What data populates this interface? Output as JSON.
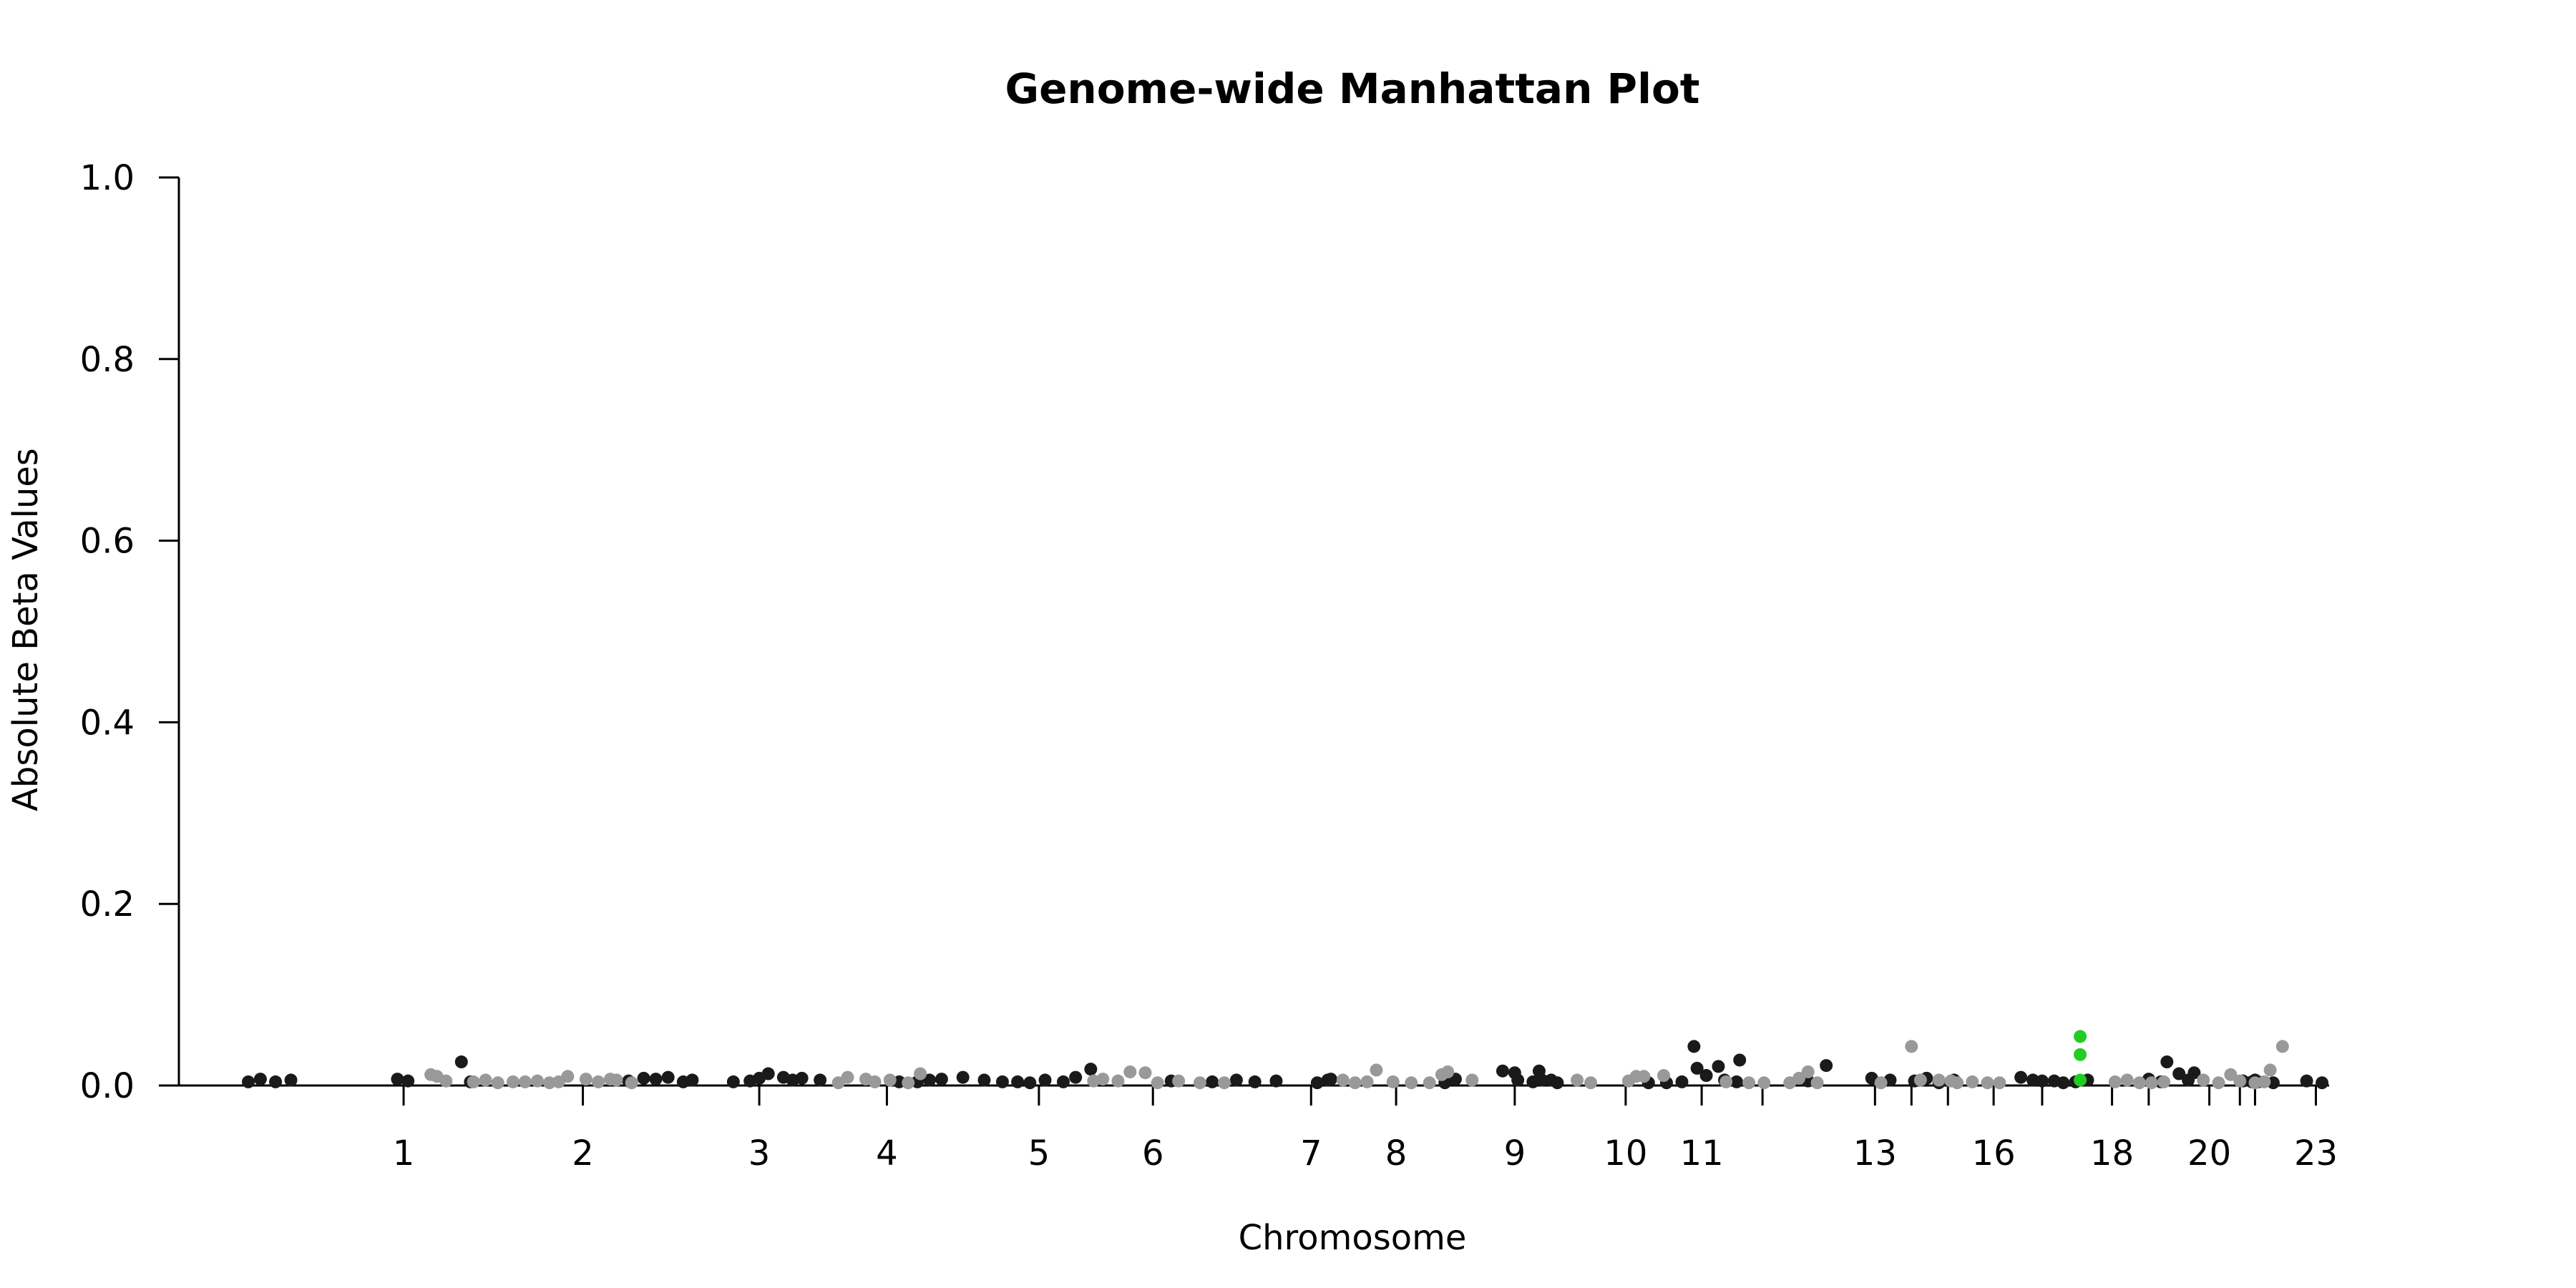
{
  "chart_data": {
    "type": "scatter",
    "title": "Genome-wide Manhattan Plot",
    "xlabel": "Chromosome",
    "ylabel": "Absolute Beta Values",
    "ylim": [
      0,
      1.0
    ],
    "y_ticks": [
      "0.0",
      "0.2",
      "0.4",
      "0.6",
      "0.8",
      "1.0"
    ],
    "grid": false,
    "legend": "none",
    "x_tick_labels": [
      "1",
      "2",
      "3",
      "4",
      "5",
      "6",
      "7",
      "8",
      "9",
      "10",
      "11",
      "13",
      "16",
      "18",
      "20",
      "23"
    ],
    "chromosome_tick_positions": [
      {
        "chr": "1",
        "pos": 0.0707,
        "label": true
      },
      {
        "chr": "2",
        "pos": 0.1523,
        "label": true
      },
      {
        "chr": "3",
        "pos": 0.2326,
        "label": true
      },
      {
        "chr": "4",
        "pos": 0.2907,
        "label": true
      },
      {
        "chr": "5",
        "pos": 0.3599,
        "label": true
      },
      {
        "chr": "6",
        "pos": 0.4118,
        "label": true
      },
      {
        "chr": "7",
        "pos": 0.4838,
        "label": true
      },
      {
        "chr": "8",
        "pos": 0.5225,
        "label": true
      },
      {
        "chr": "9",
        "pos": 0.5765,
        "label": true
      },
      {
        "chr": "10",
        "pos": 0.627,
        "label": true
      },
      {
        "chr": "11",
        "pos": 0.6616,
        "label": true
      },
      {
        "chr": "12",
        "pos": 0.6893,
        "label": false
      },
      {
        "chr": "13",
        "pos": 0.7405,
        "label": true
      },
      {
        "chr": "14",
        "pos": 0.7571,
        "label": false
      },
      {
        "chr": "15",
        "pos": 0.7737,
        "label": false
      },
      {
        "chr": "16",
        "pos": 0.7945,
        "label": true
      },
      {
        "chr": "17",
        "pos": 0.8166,
        "label": false
      },
      {
        "chr": "18",
        "pos": 0.8484,
        "label": true
      },
      {
        "chr": "19",
        "pos": 0.8651,
        "label": false
      },
      {
        "chr": "20",
        "pos": 0.8927,
        "label": true
      },
      {
        "chr": "21",
        "pos": 0.9066,
        "label": false
      },
      {
        "chr": "22",
        "pos": 0.9135,
        "label": false
      },
      {
        "chr": "23",
        "pos": 0.9412,
        "label": true
      }
    ],
    "series": [
      {
        "color": "#1a1a1a",
        "points": [
          [
            0.0,
            0.004
          ],
          [
            0.0055,
            0.007
          ],
          [
            0.0124,
            0.004
          ],
          [
            0.0194,
            0.006
          ],
          [
            0.0679,
            0.007
          ],
          [
            0.0727,
            0.005
          ],
          [
            0.097,
            0.026
          ],
          [
            0.1011,
            0.004
          ],
          [
            0.1731,
            0.005
          ],
          [
            0.18,
            0.008
          ],
          [
            0.1855,
            0.007
          ],
          [
            0.1911,
            0.009
          ],
          [
            0.198,
            0.004
          ],
          [
            0.2021,
            0.006
          ],
          [
            0.2208,
            0.004
          ],
          [
            0.2284,
            0.005
          ],
          [
            0.2326,
            0.008
          ],
          [
            0.2367,
            0.013
          ],
          [
            0.2436,
            0.009
          ],
          [
            0.2478,
            0.006
          ],
          [
            0.252,
            0.008
          ],
          [
            0.2603,
            0.006
          ],
          [
            0.2963,
            0.004
          ],
          [
            0.3046,
            0.004
          ],
          [
            0.3101,
            0.006
          ],
          [
            0.3156,
            0.007
          ],
          [
            0.3253,
            0.009
          ],
          [
            0.335,
            0.006
          ],
          [
            0.3433,
            0.004
          ],
          [
            0.3502,
            0.004
          ],
          [
            0.3558,
            0.003
          ],
          [
            0.3627,
            0.006
          ],
          [
            0.371,
            0.004
          ],
          [
            0.3766,
            0.009
          ],
          [
            0.3835,
            0.018
          ],
          [
            0.4201,
            0.005
          ],
          [
            0.4388,
            0.004
          ],
          [
            0.4498,
            0.006
          ],
          [
            0.4582,
            0.004
          ],
          [
            0.4679,
            0.005
          ],
          [
            0.4866,
            0.003
          ],
          [
            0.4914,
            0.006
          ],
          [
            0.4928,
            0.007
          ],
          [
            0.5447,
            0.003
          ],
          [
            0.5495,
            0.007
          ],
          [
            0.571,
            0.016
          ],
          [
            0.5765,
            0.014
          ],
          [
            0.5779,
            0.006
          ],
          [
            0.5848,
            0.004
          ],
          [
            0.5876,
            0.016
          ],
          [
            0.5889,
            0.006
          ],
          [
            0.5931,
            0.006
          ],
          [
            0.5959,
            0.003
          ],
          [
            0.6374,
            0.003
          ],
          [
            0.6456,
            0.003
          ],
          [
            0.6526,
            0.004
          ],
          [
            0.6581,
            0.043
          ],
          [
            0.6595,
            0.019
          ],
          [
            0.6637,
            0.011
          ],
          [
            0.6692,
            0.021
          ],
          [
            0.672,
            0.006
          ],
          [
            0.6775,
            0.004
          ],
          [
            0.6789,
            0.028
          ],
          [
            0.71,
            0.005
          ],
          [
            0.7183,
            0.022
          ],
          [
            0.739,
            0.008
          ],
          [
            0.7474,
            0.006
          ],
          [
            0.7585,
            0.005
          ],
          [
            0.764,
            0.008
          ],
          [
            0.7696,
            0.003
          ],
          [
            0.7765,
            0.006
          ],
          [
            0.8069,
            0.009
          ],
          [
            0.8124,
            0.006
          ],
          [
            0.8166,
            0.005
          ],
          [
            0.8221,
            0.005
          ],
          [
            0.8262,
            0.003
          ],
          [
            0.8318,
            0.004
          ],
          [
            0.8373,
            0.006
          ],
          [
            0.8651,
            0.007
          ],
          [
            0.8706,
            0.004
          ],
          [
            0.8734,
            0.026
          ],
          [
            0.8789,
            0.013
          ],
          [
            0.8858,
            0.014
          ],
          [
            0.8831,
            0.006
          ],
          [
            0.908,
            0.005
          ],
          [
            0.9121,
            0.004
          ],
          [
            0.9149,
            0.004
          ],
          [
            0.9218,
            0.003
          ],
          [
            0.9135,
            0.006
          ],
          [
            0.937,
            0.005
          ],
          [
            0.944,
            0.003
          ]
        ]
      },
      {
        "color": "#999999",
        "points": [
          [
            0.0831,
            0.012
          ],
          [
            0.0859,
            0.01
          ],
          [
            0.09,
            0.005
          ],
          [
            0.1025,
            0.004
          ],
          [
            0.108,
            0.006
          ],
          [
            0.1136,
            0.003
          ],
          [
            0.1205,
            0.004
          ],
          [
            0.126,
            0.004
          ],
          [
            0.1316,
            0.005
          ],
          [
            0.1371,
            0.003
          ],
          [
            0.1413,
            0.004
          ],
          [
            0.1454,
            0.01
          ],
          [
            0.1537,
            0.007
          ],
          [
            0.1593,
            0.004
          ],
          [
            0.1648,
            0.007
          ],
          [
            0.1676,
            0.006
          ],
          [
            0.1745,
            0.003
          ],
          [
            0.2686,
            0.003
          ],
          [
            0.2728,
            0.009
          ],
          [
            0.2811,
            0.007
          ],
          [
            0.2852,
            0.004
          ],
          [
            0.2921,
            0.006
          ],
          [
            0.3004,
            0.003
          ],
          [
            0.3059,
            0.013
          ],
          [
            0.3848,
            0.005
          ],
          [
            0.389,
            0.007
          ],
          [
            0.3959,
            0.005
          ],
          [
            0.4014,
            0.015
          ],
          [
            0.4083,
            0.014
          ],
          [
            0.4139,
            0.003
          ],
          [
            0.4235,
            0.005
          ],
          [
            0.4332,
            0.003
          ],
          [
            0.4443,
            0.003
          ],
          [
            0.4983,
            0.006
          ],
          [
            0.5038,
            0.003
          ],
          [
            0.5093,
            0.004
          ],
          [
            0.5135,
            0.017
          ],
          [
            0.5211,
            0.004
          ],
          [
            0.5294,
            0.003
          ],
          [
            0.5377,
            0.003
          ],
          [
            0.5433,
            0.012
          ],
          [
            0.546,
            0.015
          ],
          [
            0.5571,
            0.006
          ],
          [
            0.6049,
            0.006
          ],
          [
            0.6111,
            0.003
          ],
          [
            0.6283,
            0.005
          ],
          [
            0.6318,
            0.01
          ],
          [
            0.6353,
            0.01
          ],
          [
            0.6443,
            0.011
          ],
          [
            0.6727,
            0.004
          ],
          [
            0.6831,
            0.003
          ],
          [
            0.69,
            0.003
          ],
          [
            0.7017,
            0.003
          ],
          [
            0.7059,
            0.008
          ],
          [
            0.71,
            0.015
          ],
          [
            0.7142,
            0.003
          ],
          [
            0.7432,
            0.003
          ],
          [
            0.7571,
            0.043
          ],
          [
            0.7612,
            0.006
          ],
          [
            0.7696,
            0.006
          ],
          [
            0.7751,
            0.005
          ],
          [
            0.7779,
            0.003
          ],
          [
            0.7848,
            0.004
          ],
          [
            0.7917,
            0.003
          ],
          [
            0.7972,
            0.003
          ],
          [
            0.8498,
            0.004
          ],
          [
            0.8553,
            0.006
          ],
          [
            0.8609,
            0.003
          ],
          [
            0.8664,
            0.003
          ],
          [
            0.872,
            0.004
          ],
          [
            0.89,
            0.006
          ],
          [
            0.8969,
            0.003
          ],
          [
            0.9024,
            0.012
          ],
          [
            0.9066,
            0.005
          ],
          [
            0.9135,
            0.003
          ],
          [
            0.9177,
            0.004
          ],
          [
            0.9204,
            0.017
          ],
          [
            0.926,
            0.043
          ]
        ]
      },
      {
        "color": "#22cc22",
        "points": [
          [
            0.8339,
            0.054
          ],
          [
            0.8339,
            0.034
          ],
          [
            0.8339,
            0.006
          ]
        ]
      }
    ]
  }
}
